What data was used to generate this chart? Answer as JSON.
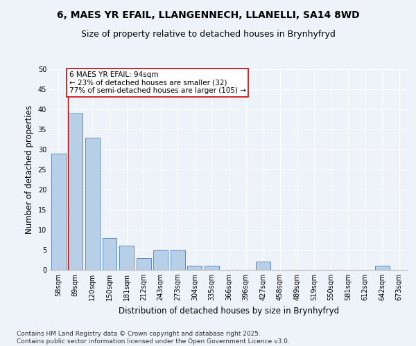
{
  "title1": "6, MAES YR EFAIL, LLANGENNECH, LLANELLI, SA14 8WD",
  "title2": "Size of property relative to detached houses in Brynhyfryd",
  "xlabel": "Distribution of detached houses by size in Brynhyfryd",
  "ylabel": "Number of detached properties",
  "categories": [
    "58sqm",
    "89sqm",
    "120sqm",
    "150sqm",
    "181sqm",
    "212sqm",
    "243sqm",
    "273sqm",
    "304sqm",
    "335sqm",
    "366sqm",
    "396sqm",
    "427sqm",
    "458sqm",
    "489sqm",
    "519sqm",
    "550sqm",
    "581sqm",
    "612sqm",
    "642sqm",
    "673sqm"
  ],
  "values": [
    29,
    39,
    33,
    8,
    6,
    3,
    5,
    5,
    1,
    1,
    0,
    0,
    2,
    0,
    0,
    0,
    0,
    0,
    0,
    1,
    0
  ],
  "bar_color": "#b8cfe8",
  "bar_edge_color": "#5a8ac6",
  "highlight_line_color": "#cc0000",
  "highlight_bar_index": 1,
  "annotation_text": "6 MAES YR EFAIL: 94sqm\n← 23% of detached houses are smaller (32)\n77% of semi-detached houses are larger (105) →",
  "annotation_box_edge_color": "#cc0000",
  "ylim": [
    0,
    50
  ],
  "yticks": [
    0,
    5,
    10,
    15,
    20,
    25,
    30,
    35,
    40,
    45,
    50
  ],
  "footer": "Contains HM Land Registry data © Crown copyright and database right 2025.\nContains public sector information licensed under the Open Government Licence v3.0.",
  "background_color": "#eef2f9",
  "grid_color": "#ffffff",
  "title_fontsize": 10,
  "subtitle_fontsize": 9,
  "axis_label_fontsize": 8.5,
  "tick_fontsize": 7,
  "footer_fontsize": 6.5,
  "annotation_fontsize": 7.5
}
